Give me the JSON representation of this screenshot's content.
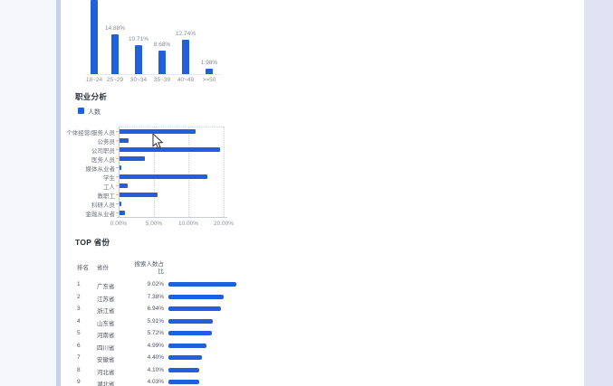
{
  "page": {
    "accent_blue": "#2160dc",
    "bg_left": "#f6f7fb",
    "bg_right": "#dfe3f3",
    "scrollbar_color": "#c9d1e8",
    "card_bg": "#ffffff"
  },
  "sections": {
    "occupation": {
      "title": "职业分析",
      "legend_label": "人数"
    },
    "provinces": {
      "title": "TOP 省份",
      "header_rank": "排名",
      "header_province": "省份",
      "header_share_line1": "搜索人数占",
      "header_share_line2": "比"
    }
  },
  "chart_data": [
    {
      "id": "age_distribution",
      "type": "bar",
      "categories": [
        "18~24",
        "25~29",
        "30~34",
        "35~39",
        "40~49",
        ">=50"
      ],
      "values": [
        null,
        14.88,
        10.71,
        8.68,
        12.74,
        1.98
      ],
      "value_labels": [
        "",
        "14.88%",
        "10.71%",
        "8.68%",
        "12.74%",
        "1.98%"
      ],
      "note_first_bar_clipped_above_viewport": true,
      "bar_color": "#2160dc"
    },
    {
      "id": "occupation",
      "type": "bar",
      "orientation": "horizontal",
      "title": "职业分析",
      "legend": [
        "人数"
      ],
      "categories": [
        "个体经营/服务人员",
        "公务员",
        "公司职员",
        "医务人员",
        "媒体从业者",
        "学生",
        "工人",
        "教职工",
        "科研人员",
        "金融从业者"
      ],
      "values": [
        11.8,
        1.3,
        18.7,
        3.6,
        0.3,
        15.1,
        1.2,
        5.4,
        0.2,
        0.8
      ],
      "xticks_labels": [
        "0.00%",
        "5.00%",
        "10.00%",
        "20.00%"
      ],
      "xticks_values": [
        0,
        5,
        10,
        20
      ],
      "xlim": [
        0,
        20
      ],
      "grid": "dotted-vertical",
      "legend_position": "top-left",
      "bar_color": "#2160dc"
    },
    {
      "id": "top_provinces",
      "type": "table",
      "title": "TOP 省份",
      "columns": [
        "排名",
        "省份",
        "搜索人数占比"
      ],
      "rows": [
        {
          "rank": "1",
          "province": "广东省",
          "share": "9.02%",
          "value": 9.02
        },
        {
          "rank": "2",
          "province": "江苏省",
          "share": "7.38%",
          "value": 7.38
        },
        {
          "rank": "3",
          "province": "浙江省",
          "share": "6.94%",
          "value": 6.94
        },
        {
          "rank": "4",
          "province": "山东省",
          "share": "5.91%",
          "value": 5.91
        },
        {
          "rank": "5",
          "province": "河南省",
          "share": "5.72%",
          "value": 5.72
        },
        {
          "rank": "6",
          "province": "四川省",
          "share": "4.99%",
          "value": 4.99
        },
        {
          "rank": "7",
          "province": "安徽省",
          "share": "4.40%",
          "value": 4.4
        },
        {
          "rank": "8",
          "province": "河北省",
          "share": "4.10%",
          "value": 4.1
        },
        {
          "rank": "9",
          "province": "湖北省",
          "share": "4.03%",
          "value": 4.03
        }
      ],
      "bar_color": "#2160dc",
      "bar_scale_max": 9.02
    }
  ]
}
